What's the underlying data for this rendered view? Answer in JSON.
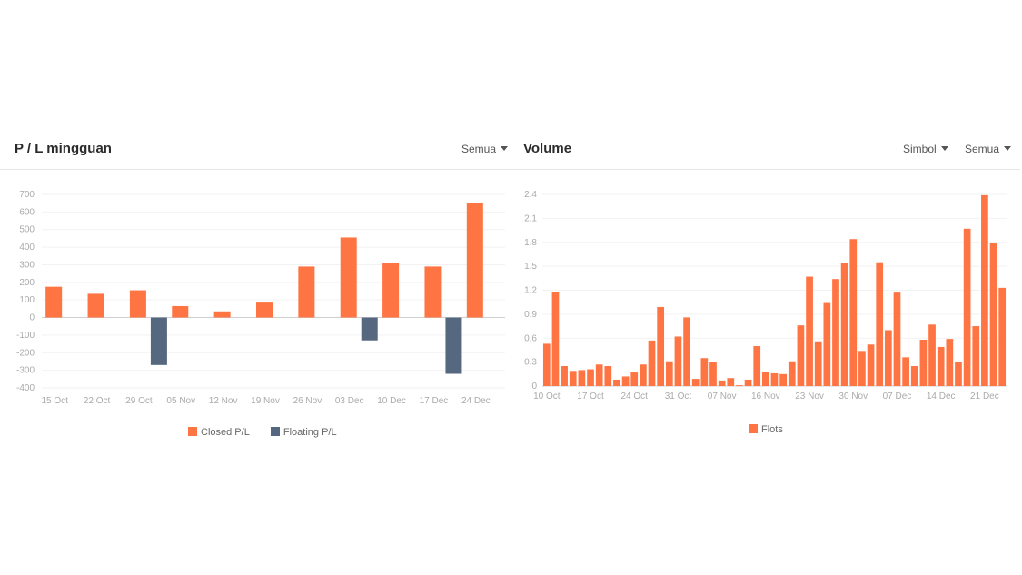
{
  "pl": {
    "title": "P / L mingguan",
    "filter": "Semua",
    "colors": {
      "closed": "#ff7443",
      "floating": "#566880"
    },
    "chart_data": {
      "type": "bar",
      "categories": [
        "15 Oct",
        "22 Oct",
        "29 Oct",
        "05 Nov",
        "12 Nov",
        "19 Nov",
        "26 Nov",
        "03 Dec",
        "10 Dec",
        "17 Dec",
        "24 Dec"
      ],
      "series": [
        {
          "name": "Closed P/L",
          "values": [
            175,
            135,
            155,
            65,
            35,
            85,
            290,
            455,
            310,
            290,
            650
          ]
        },
        {
          "name": "Floating P/L",
          "values": [
            0,
            0,
            -270,
            0,
            0,
            0,
            0,
            -130,
            0,
            -320,
            0
          ]
        }
      ],
      "yticks": [
        "700",
        "600",
        "500",
        "400",
        "300",
        "200",
        "100",
        "0",
        "-100",
        "-200",
        "-300",
        "-400"
      ],
      "ylim": [
        -400,
        700
      ]
    }
  },
  "volume": {
    "title": "Volume",
    "filter_symbol": "Simbol",
    "filter_all": "Semua",
    "colors": {
      "bar": "#ff7443"
    },
    "chart_data": {
      "type": "bar",
      "x_labels": [
        "10 Oct",
        "17 Oct",
        "24 Oct",
        "31 Oct",
        "07 Nov",
        "16 Nov",
        "23 Nov",
        "30 Nov",
        "07 Dec",
        "14 Dec",
        "21 Dec"
      ],
      "label_every": 5,
      "series": [
        {
          "name": "Flots",
          "values": [
            0.53,
            1.18,
            0.25,
            0.19,
            0.2,
            0.21,
            0.27,
            0.25,
            0.08,
            0.12,
            0.17,
            0.27,
            0.57,
            0.99,
            0.31,
            0.62,
            0.86,
            0.09,
            0.35,
            0.3,
            0.07,
            0.1,
            0.01,
            0.08,
            0.5,
            0.18,
            0.16,
            0.15,
            0.31,
            0.76,
            1.37,
            0.56,
            1.04,
            1.34,
            1.54,
            1.84,
            0.44,
            0.52,
            1.55,
            0.7,
            1.17,
            0.36,
            0.25,
            0.58,
            0.77,
            0.49,
            0.59,
            0.3,
            1.97,
            0.75,
            2.39,
            1.79,
            1.23
          ]
        }
      ],
      "yticks": [
        "2.4",
        "2.1",
        "1.8",
        "1.5",
        "1.2",
        "0.9",
        "0.6",
        "0.3",
        "0"
      ],
      "ylim": [
        0,
        2.4
      ]
    }
  }
}
